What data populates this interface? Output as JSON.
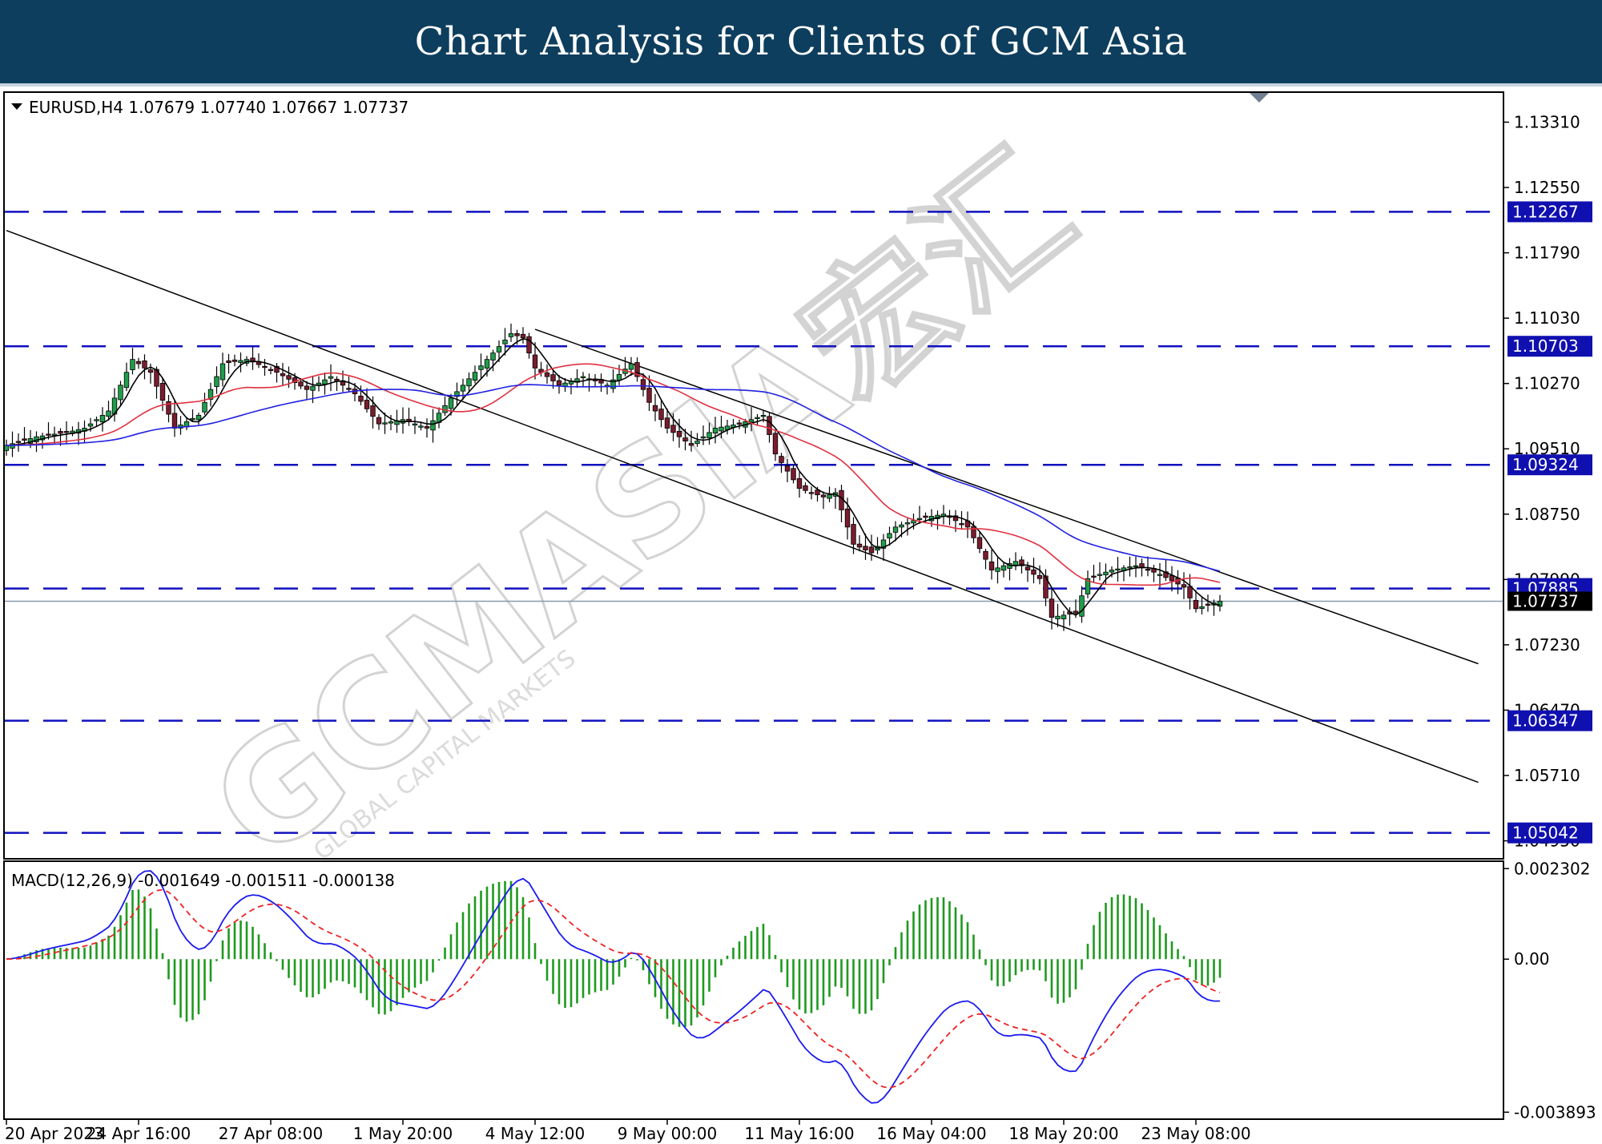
{
  "header": {
    "title": "Chart Analysis for Clients of GCM Asia"
  },
  "watermark": {
    "text": "GCMASIA宏汇",
    "subtext": "GLOBAL CAPITAL MARKETS"
  },
  "chart_data": [
    {
      "type": "candlestick",
      "symbol": "EURUSD,H4",
      "ohlc": {
        "open": "1.07679",
        "high": "1.07740",
        "low": "1.07667",
        "close": "1.07737"
      },
      "legend_text": "EURUSD,H4  1.07679 1.07740 1.07667 1.07737",
      "current_price": "1.07737",
      "ylim": [
        1.0475,
        1.1365
      ],
      "y_ticks": [
        "1.13310",
        "1.12550",
        "1.11790",
        "1.11030",
        "1.10270",
        "1.09510",
        "1.08750",
        "1.07990",
        "1.07230",
        "1.06470",
        "1.05710",
        "1.04950"
      ],
      "x_ticks": [
        "20 Apr 2023",
        "24 Apr 16:00",
        "27 Apr 08:00",
        "1 May 20:00",
        "4 May 12:00",
        "9 May 00:00",
        "11 May 16:00",
        "16 May 04:00",
        "18 May 20:00",
        "23 May 08:00"
      ],
      "x_tick_bar_index": [
        0,
        22,
        44,
        66,
        88,
        110,
        132,
        154,
        176,
        198
      ],
      "levels": [
        {
          "label": "1.12267",
          "value": 1.12267
        },
        {
          "label": "1.10703",
          "value": 1.10703
        },
        {
          "label": "1.09324",
          "value": 1.09324
        },
        {
          "label": "1.07885",
          "value": 1.07885
        },
        {
          "label": "1.06347",
          "value": 1.06347
        },
        {
          "label": "1.05042",
          "value": 1.05042
        }
      ],
      "channel": {
        "upper": [
          [
            88,
            1.109
          ],
          [
            245,
            1.0701
          ]
        ],
        "lower": [
          [
            0,
            1.1205
          ],
          [
            245,
            1.0563
          ]
        ]
      },
      "close_anchors": [
        [
          0,
          1.0955
        ],
        [
          5,
          1.0965
        ],
        [
          10,
          1.097
        ],
        [
          13,
          1.0975
        ],
        [
          17,
          1.0995
        ],
        [
          21,
          1.1055
        ],
        [
          24,
          1.104
        ],
        [
          28,
          1.0975
        ],
        [
          32,
          1.099
        ],
        [
          36,
          1.105
        ],
        [
          40,
          1.1055
        ],
        [
          45,
          1.104
        ],
        [
          50,
          1.102
        ],
        [
          54,
          1.1035
        ],
        [
          58,
          1.1015
        ],
        [
          62,
          1.098
        ],
        [
          66,
          1.0985
        ],
        [
          70,
          1.0975
        ],
        [
          74,
          1.101
        ],
        [
          78,
          1.104
        ],
        [
          82,
          1.107
        ],
        [
          84,
          1.1085
        ],
        [
          86,
          1.108
        ],
        [
          88,
          1.1045
        ],
        [
          92,
          1.1025
        ],
        [
          96,
          1.1035
        ],
        [
          100,
          1.1025
        ],
        [
          104,
          1.105
        ],
        [
          107,
          1.1005
        ],
        [
          110,
          1.0975
        ],
        [
          114,
          1.0955
        ],
        [
          118,
          1.0975
        ],
        [
          122,
          1.098
        ],
        [
          126,
          1.099
        ],
        [
          128,
          1.0945
        ],
        [
          132,
          1.0905
        ],
        [
          136,
          1.0895
        ],
        [
          138,
          1.09
        ],
        [
          141,
          1.084
        ],
        [
          144,
          1.083
        ],
        [
          148,
          1.086
        ],
        [
          152,
          1.087
        ],
        [
          156,
          1.0875
        ],
        [
          160,
          1.086
        ],
        [
          164,
          1.081
        ],
        [
          168,
          1.082
        ],
        [
          172,
          1.08
        ],
        [
          174,
          1.0755
        ],
        [
          178,
          1.076
        ],
        [
          180,
          1.08
        ],
        [
          184,
          1.081
        ],
        [
          188,
          1.0815
        ],
        [
          192,
          1.0805
        ],
        [
          196,
          1.079
        ],
        [
          198,
          1.0765
        ],
        [
          202,
          1.0774
        ]
      ],
      "ma_series": [
        {
          "period": 5,
          "color": "#000000"
        },
        {
          "period": 20,
          "color": "#e03040"
        },
        {
          "period": 50,
          "color": "#2020e0"
        }
      ],
      "colors": {
        "bull_body": "#1e9e4a",
        "bear_body": "#7a1c2e",
        "level_line": "#1010c0",
        "level_label_bg": "#1010b0",
        "channel": "#000000"
      }
    },
    {
      "type": "macd",
      "label": "MACD(12,26,9)",
      "values_text": "-0.001649 -0.001511 -0.000138",
      "legend_text": "MACD(12,26,9) -0.001649 -0.001511 -0.000138",
      "ylim": [
        -0.00405,
        0.00245
      ],
      "y_ticks": [
        "0.002302",
        "0.00",
        "-0.003893"
      ],
      "series": [
        {
          "name": "MACD",
          "color": "#1a1af0"
        },
        {
          "name": "Signal",
          "color": "#ee2222"
        },
        {
          "name": "Histogram",
          "color": "#1e9a1e"
        }
      ]
    }
  ]
}
